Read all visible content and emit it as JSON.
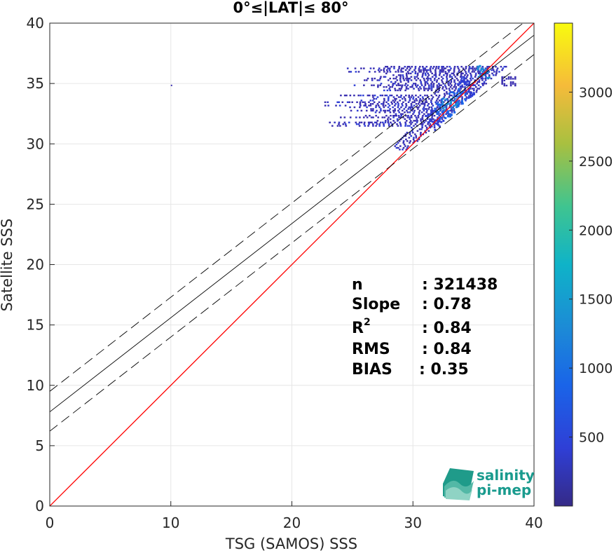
{
  "chart_data": {
    "type": "heatmap",
    "title": "0°≤|LAT|≤ 80°",
    "xlabel": "TSG (SAMOS) SSS",
    "ylabel": "Satellite SSS",
    "xlim": [
      0,
      40
    ],
    "ylim": [
      0,
      40
    ],
    "xticks": [
      0,
      10,
      20,
      30,
      40
    ],
    "yticks": [
      0,
      5,
      10,
      15,
      20,
      25,
      30,
      35,
      40
    ],
    "grid": true,
    "colorbar": {
      "range": [
        0,
        3500
      ],
      "ticks": [
        500,
        1000,
        1500,
        2000,
        2500,
        3000
      ],
      "colormap": "parula"
    },
    "lines": [
      {
        "kind": "one-to-one",
        "color": "#ff0000",
        "slope": 1.0,
        "intercept": 0.0
      },
      {
        "kind": "regression",
        "color": "#000000",
        "slope": 0.78,
        "intercept": 7.8
      },
      {
        "kind": "regression-upper",
        "color": "#000000",
        "dashed": true,
        "slope": 0.78,
        "intercept": 9.5
      },
      {
        "kind": "regression-lower",
        "color": "#000000",
        "dashed": true,
        "slope": 0.78,
        "intercept": 6.2
      }
    ],
    "density_core": {
      "x": 33,
      "y": 33.4
    },
    "stats": [
      {
        "label": "n",
        "value": ": 321438"
      },
      {
        "label": "Slope",
        "value": ": 0.78"
      },
      {
        "label": "R",
        "sup": "2",
        "value": ": 0.84"
      },
      {
        "label": "RMS",
        "value": ": 0.84"
      },
      {
        "label": "BIAS",
        "value": ": 0.35"
      }
    ]
  },
  "logo": {
    "line1": "salinity",
    "line2": "pi-mep"
  }
}
